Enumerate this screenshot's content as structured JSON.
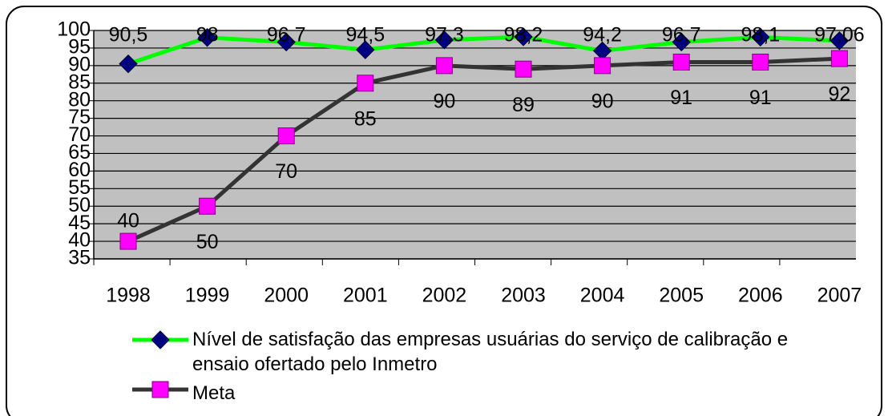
{
  "chart_data": {
    "type": "line",
    "categories": [
      "1998",
      "1999",
      "2000",
      "2001",
      "2002",
      "2003",
      "2004",
      "2005",
      "2006",
      "2007"
    ],
    "series": [
      {
        "name": "Nível de satisfação das empresas usuárias do serviço de calibração e ensaio ofertado pelo Inmetro",
        "color": "#00ff00",
        "marker_color": "#000080",
        "values": [
          90.5,
          98,
          96.7,
          94.5,
          97.3,
          98.2,
          94.2,
          96.7,
          98.1,
          97.06
        ],
        "value_labels": [
          "90,5",
          "98",
          "96,7",
          "94,5",
          "97,3",
          "98,2",
          "94,2",
          "96,7",
          "98,1",
          "97,06"
        ]
      },
      {
        "name": "Meta",
        "color": "#333333",
        "marker_color": "#ff00ff",
        "values": [
          40,
          50,
          70,
          85,
          90,
          89,
          90,
          91,
          91,
          92
        ]
      }
    ],
    "ylim": [
      35,
      100
    ],
    "yticks": [
      35,
      40,
      45,
      50,
      55,
      60,
      65,
      70,
      75,
      80,
      85,
      90,
      95,
      100
    ],
    "grid": true,
    "plot_background": "#c0c0c0",
    "legend": "bottom"
  }
}
